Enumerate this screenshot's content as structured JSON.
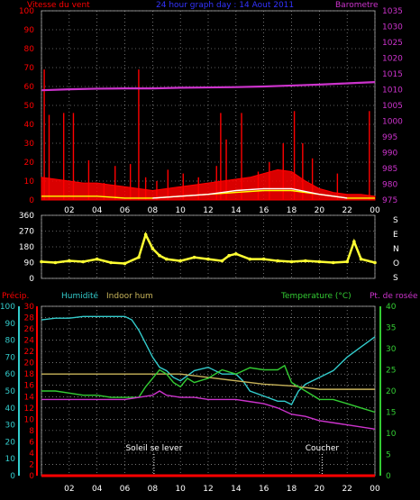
{
  "colors": {
    "background": "#000000",
    "grid": "#ffffff",
    "wind_red": "#ff0000",
    "gust_white": "#ffffff",
    "avg_yellow": "#ffff00",
    "barometer": "#cc33cc",
    "title_blue": "#3333ff",
    "direction_yellow": "#ffff33",
    "humidity_cyan": "#33cccc",
    "indoor_hum": "#c8b45a",
    "temperature_green": "#33cc33",
    "dewpoint_magenta": "#cc33cc",
    "precip_red": "#ff0000",
    "sun_marker": "#ffffff"
  },
  "chart_data": [
    {
      "type": "line",
      "id": "wind_baro",
      "left_label": "Vitesse du vent",
      "center_label": "24 hour graph day : 14 Aout 2011",
      "right_label": "Barometre",
      "y_left_ticks": [
        "100",
        "90",
        "80",
        "70",
        "60",
        "50",
        "40",
        "30",
        "20",
        "10",
        "0"
      ],
      "y_left_range": [
        0,
        100
      ],
      "y_right_ticks": [
        "1035",
        "1030",
        "1025",
        "1020",
        "1015",
        "1010",
        "1005",
        "1000",
        "995",
        "990",
        "985",
        "980",
        "975"
      ],
      "y_right_range": [
        975,
        1035
      ],
      "x_ticks": [
        "02",
        "04",
        "06",
        "08",
        "10",
        "12",
        "14",
        "16",
        "18",
        "20",
        "22",
        "00"
      ],
      "x_range": [
        0,
        24
      ],
      "grid": true,
      "series": [
        {
          "role": "wind_gust_spikes",
          "color": "#ff0000",
          "x": [
            0.2,
            0.55,
            1.6,
            2.3,
            3.4,
            4.5,
            5.3,
            6.4,
            7.0,
            7.5,
            8.3,
            9.1,
            10.2,
            11.3,
            12.6,
            12.9,
            13.3,
            14.4,
            15.6,
            16.4,
            17.4,
            18.2,
            18.8,
            19.5,
            21.3,
            23.6
          ],
          "values": [
            69,
            45,
            46,
            46,
            21,
            9,
            18,
            19,
            69,
            12,
            10,
            16,
            14,
            12,
            18,
            46,
            32,
            46,
            15,
            20,
            30,
            47,
            30,
            22,
            14,
            47
          ]
        },
        {
          "role": "wind_speed_area",
          "color": "#ff0000",
          "x": [
            0,
            1,
            2,
            3,
            4,
            5,
            6,
            7,
            8,
            9,
            10,
            11,
            12,
            13,
            14,
            15,
            16,
            17,
            18,
            19,
            20,
            21,
            22,
            23,
            24
          ],
          "values": [
            12,
            11,
            10,
            9,
            9,
            8,
            7,
            6,
            5,
            6,
            7,
            8,
            9,
            10,
            11,
            12,
            14,
            16,
            15,
            10,
            6,
            4,
            3,
            3,
            2
          ]
        },
        {
          "role": "wind_average",
          "color": "#ffff00",
          "x": [
            0,
            2,
            4,
            6,
            8,
            10,
            12,
            14,
            16,
            18,
            20,
            22,
            24
          ],
          "values": [
            2,
            2,
            2,
            1,
            1,
            2,
            3,
            4,
            5,
            5,
            3,
            1,
            1
          ]
        },
        {
          "role": "gust_white",
          "color": "#ffffff",
          "x": [
            8,
            10,
            12,
            14,
            16,
            18,
            20,
            22
          ],
          "values": [
            1,
            2,
            3,
            5,
            6,
            6,
            3,
            1
          ]
        },
        {
          "role": "barometer",
          "color": "#cc33cc",
          "axis": "right",
          "x": [
            0,
            2,
            4,
            6,
            8,
            10,
            12,
            14,
            16,
            18,
            20,
            22,
            24
          ],
          "values": [
            1009.8,
            1010.1,
            1010.3,
            1010.4,
            1010.4,
            1010.6,
            1010.7,
            1010.8,
            1011.0,
            1011.3,
            1011.6,
            1012.0,
            1012.4
          ]
        }
      ]
    },
    {
      "type": "scatter",
      "id": "wind_direction",
      "y_ticks": [
        "360",
        "270",
        "180",
        "90",
        "0"
      ],
      "y_range": [
        0,
        360
      ],
      "x_range": [
        0,
        24
      ],
      "side_letters": [
        "S",
        "E",
        "N",
        "O",
        "S"
      ],
      "grid": true,
      "series": [
        {
          "role": "direction",
          "color": "#ffff33",
          "x": [
            0,
            1,
            2,
            3,
            4,
            5,
            6,
            7,
            7.5,
            8,
            8.5,
            9,
            10,
            11,
            12,
            13,
            13.5,
            14,
            15,
            16,
            17,
            18,
            19,
            20,
            21,
            22,
            22.5,
            23,
            24
          ],
          "values": [
            95,
            90,
            100,
            95,
            110,
            90,
            85,
            120,
            250,
            170,
            130,
            110,
            100,
            120,
            110,
            100,
            130,
            140,
            110,
            110,
            100,
            95,
            100,
            95,
            90,
            95,
            210,
            110,
            90
          ]
        }
      ]
    },
    {
      "type": "line",
      "id": "temp_hum",
      "labels": {
        "precip": "Précip.",
        "humidity": "Humidité",
        "indoor_hum": "Indoor hum",
        "temperature": "Temperature (°C)",
        "dewpoint": "Pt. de rosée"
      },
      "humidity_ticks": [
        "100",
        "90",
        "80",
        "70",
        "60",
        "50",
        "40",
        "30",
        "20",
        "10",
        "0"
      ],
      "humidity_range": [
        0,
        100
      ],
      "precip_ticks": [
        "30",
        "28",
        "26",
        "24",
        "22",
        "20",
        "18",
        "16",
        "14",
        "12",
        "10",
        "8",
        "6",
        "4",
        "2",
        "0"
      ],
      "precip_range": [
        0,
        30
      ],
      "temp_ticks": [
        "40",
        "35",
        "30",
        "25",
        "20",
        "15",
        "10",
        "5",
        "0"
      ],
      "temp_range": [
        0,
        40
      ],
      "x_ticks": [
        "02",
        "04",
        "06",
        "08",
        "10",
        "12",
        "14",
        "16",
        "18",
        "20",
        "22",
        "00"
      ],
      "x_range": [
        0,
        24
      ],
      "grid": true,
      "annotations": [
        {
          "text": "Soleil se lever",
          "x": 8.1
        },
        {
          "text": "Coucher",
          "x": 20.2
        }
      ],
      "series": [
        {
          "name": "Humidité",
          "color": "#33cccc",
          "axis": "humidity",
          "x": [
            0,
            1,
            2,
            3,
            4,
            5,
            6,
            6.5,
            7,
            7.5,
            8,
            8.5,
            9,
            9.5,
            10,
            11,
            12,
            13,
            14,
            14.5,
            15,
            16,
            17,
            17.5,
            18,
            18.5,
            19,
            20,
            21,
            22,
            23,
            24
          ],
          "values": [
            92,
            93,
            93,
            94,
            94,
            94,
            94,
            92,
            86,
            78,
            70,
            64,
            62,
            58,
            56,
            62,
            64,
            60,
            60,
            56,
            50,
            47,
            44,
            44,
            42,
            50,
            54,
            58,
            62,
            70,
            76,
            82
          ]
        },
        {
          "name": "Indoor hum",
          "color": "#c8b45a",
          "axis": "humidity",
          "x": [
            0,
            2,
            4,
            6,
            8,
            10,
            12,
            14,
            16,
            18,
            19,
            20,
            22,
            24
          ],
          "values": [
            60,
            60,
            60,
            60,
            60,
            60,
            58,
            56,
            54,
            53,
            52,
            51,
            51,
            51
          ]
        },
        {
          "name": "Temperature (°C)",
          "color": "#33cc33",
          "axis": "temp",
          "x": [
            0,
            1,
            2,
            3,
            4,
            5,
            6,
            7,
            7.5,
            8,
            8.5,
            9,
            9.5,
            10,
            10.5,
            11,
            12,
            13,
            14,
            15,
            16,
            17,
            17.5,
            18,
            19,
            20,
            21,
            22,
            23,
            24
          ],
          "values": [
            20,
            20,
            19.5,
            19,
            19,
            18.5,
            18.5,
            18.5,
            21,
            23,
            25,
            24,
            22,
            21,
            23,
            22,
            23,
            25,
            24,
            25.5,
            25,
            25,
            26,
            22,
            20,
            18,
            18,
            17,
            16,
            15
          ]
        },
        {
          "name": "Pt. de rosée",
          "color": "#cc33cc",
          "axis": "temp",
          "x": [
            0,
            1,
            2,
            3,
            4,
            5,
            6,
            7,
            8,
            8.5,
            9,
            10,
            11,
            12,
            13,
            14,
            15,
            16,
            17,
            18,
            19,
            20,
            21,
            22,
            23,
            24
          ],
          "values": [
            18,
            18,
            18,
            18,
            18,
            18,
            18,
            18.5,
            19,
            20,
            19,
            18.5,
            18.5,
            18,
            18,
            18,
            17.5,
            17,
            16,
            14.5,
            14,
            13,
            12.5,
            12,
            11.5,
            11
          ]
        },
        {
          "name": "Précip.",
          "color": "#ff0000",
          "axis": "precip",
          "x": [
            0,
            24
          ],
          "values": [
            0,
            0
          ]
        }
      ]
    }
  ]
}
